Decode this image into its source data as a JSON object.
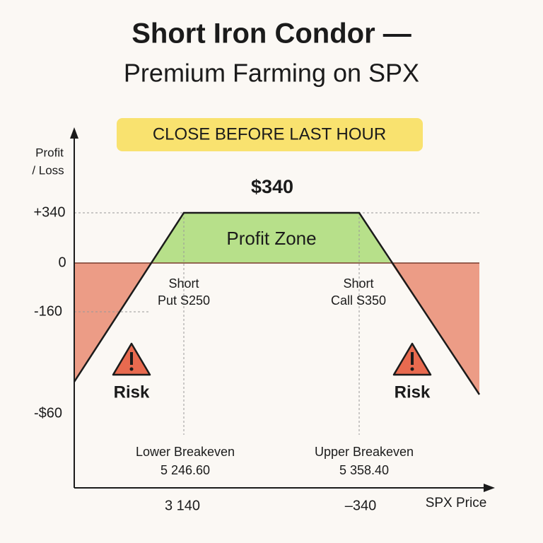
{
  "header": {
    "title": "Short Iron Condor —",
    "subtitle": "Premium Farming on SPX"
  },
  "banner": "CLOSE BEFORE LAST HOUR",
  "y_axis_label": [
    "Profit",
    "/ Loss"
  ],
  "max_profit_label": "$340",
  "profit_zone": "Profit Zone",
  "y_labels": [
    "+340",
    "0",
    "-160",
    "-$60"
  ],
  "strikes": [
    {
      "line1": "Short",
      "line2": "Put S250"
    },
    {
      "line1": "Short",
      "line2": "Call S350"
    }
  ],
  "risk_labels": [
    "Risk",
    "Risk"
  ],
  "breakevens": [
    {
      "label": "Lower Breakeven",
      "value": "5 246.60"
    },
    {
      "label": "Upper Breakeven",
      "value": "5 358.40"
    }
  ],
  "x_labels": [
    "3 140",
    "–340"
  ],
  "x_axis_label": "SPX Price"
}
